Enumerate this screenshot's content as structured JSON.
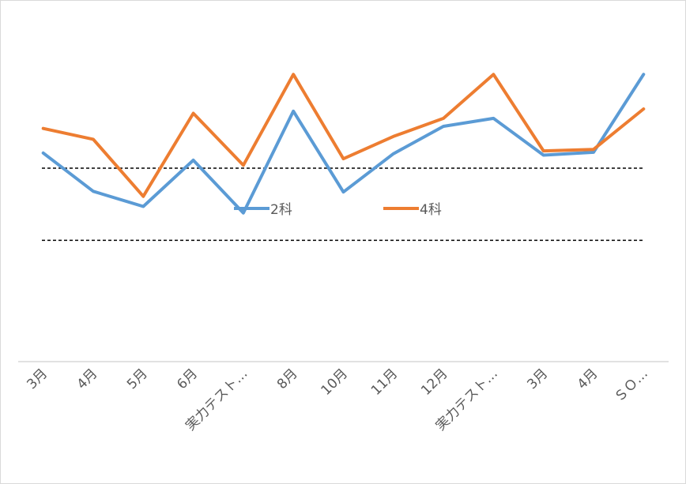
{
  "chart_data": {
    "type": "line",
    "title": "",
    "xlabel": "",
    "ylabel": "",
    "categories": [
      "3月",
      "4月",
      "5月",
      "6月",
      "実力テスト…",
      "8月",
      "10月",
      "11月",
      "12月",
      "実力テスト…",
      "3月",
      "4月",
      "ＳＯ…"
    ],
    "series": [
      {
        "name": "2科",
        "color": "#5b9bd5",
        "values": [
          52.1,
          46.8,
          44.7,
          51.1,
          43.8,
          57.9,
          46.7,
          52.0,
          55.8,
          56.9,
          51.8,
          52.2,
          63.0
        ]
      },
      {
        "name": "4科",
        "color": "#ed7d31",
        "values": [
          55.5,
          54.0,
          46.1,
          57.6,
          50.4,
          63.0,
          51.3,
          54.4,
          56.9,
          63.0,
          52.4,
          52.6,
          58.2
        ]
      }
    ],
    "ylim": [
      23.2,
      73.3
    ],
    "reference_lines": [
      {
        "value": 50,
        "style": "dashed",
        "color": "#000000"
      },
      {
        "value": 40,
        "style": "dashed",
        "color": "#000000"
      }
    ],
    "legend_position": "center",
    "grid": false
  }
}
